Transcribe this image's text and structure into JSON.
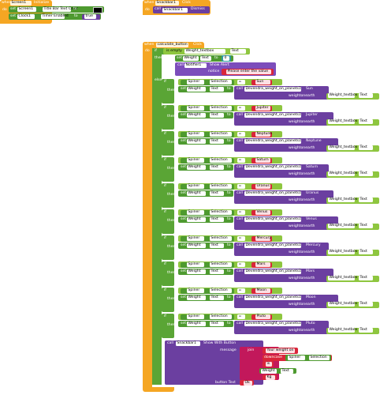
{
  "screen_init": {
    "when": "when",
    "component": "Screen1",
    "event": "Initialize",
    "do": "do",
    "set1_prefix": "set",
    "set1_component": "Screen1",
    "set1_property": "Title Bar Text Color",
    "set1_to": "to",
    "set2_prefix": "set",
    "set2_component": "Clock1",
    "set2_property": "Timer Enabled",
    "set2_to": "to",
    "set2_value": "true"
  },
  "snackbar": {
    "when": "when",
    "component": "Snackbar1",
    "event": "Click",
    "do": "do",
    "call": "call",
    "call_component": "Snackbar1",
    "call_method": "Dismiss"
  },
  "calc": {
    "when": "when",
    "component": "calculate_button",
    "event": "Click",
    "do": "do",
    "if": "if",
    "is_empty": "is empty",
    "weight_textbox": "Weight_textbox",
    "text": "Text",
    "then": "then",
    "else": "else",
    "set": "set",
    "weight": "Weight",
    "to": "to",
    "zero": "0",
    "call": "call",
    "notifier": "Notifier1",
    "show_alert": "Show Alert",
    "notice": "notice",
    "notice_value": "Please enter the value",
    "spinner": "Spiner",
    "selection": "Selection",
    "eq": "=",
    "call_fn": "call",
    "fn_name": "Devendra_weight_on_planets1",
    "weightonearth": "weightonearth",
    "planets": [
      "Sun",
      "Jupiter",
      "Neptune",
      "Saturn",
      "Uranus",
      "Venus",
      "Mercury",
      "Mars",
      "Moon",
      "Pluto"
    ],
    "snack_call": "call",
    "snack_component": "Snackbar1",
    "snack_method": "Show With Button",
    "message": "message",
    "join": "join",
    "your_weight_on": "Your weight on",
    "downcase": "downcase",
    "is_text": "is",
    "kg": "Kg",
    "button_text": "button Text",
    "ok": "Ok"
  },
  "colors": {
    "event": "#f5a623",
    "component": "#6b3fa0",
    "logic": "#5aa535",
    "text_string": "#d9263a",
    "math": "#2f9aa0",
    "notifier_call": "#7c4dbb"
  }
}
